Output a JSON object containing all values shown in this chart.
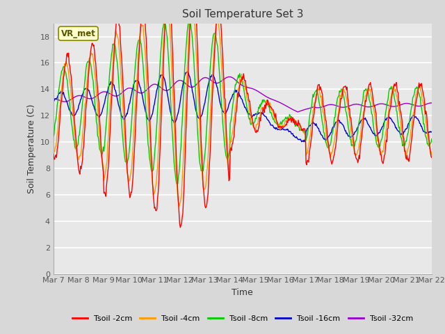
{
  "title": "Soil Temperature Set 3",
  "xlabel": "Time",
  "ylabel": "Soil Temperature (C)",
  "ylim": [
    0,
    19
  ],
  "yticks": [
    0,
    2,
    4,
    6,
    8,
    10,
    12,
    14,
    16,
    18
  ],
  "x_labels": [
    "Mar 7",
    "Mar 8",
    "Mar 9",
    "Mar 10",
    "Mar 11",
    "Mar 12",
    "Mar 13",
    "Mar 14",
    "Mar 15",
    "Mar 16",
    "Mar 17",
    "Mar 18",
    "Mar 19",
    "Mar 20",
    "Mar 21",
    "Mar 22"
  ],
  "annotation_text": "VR_met",
  "legend_labels": [
    "Tsoil -2cm",
    "Tsoil -4cm",
    "Tsoil -8cm",
    "Tsoil -16cm",
    "Tsoil -32cm"
  ],
  "line_colors": [
    "#ff0000",
    "#ff9900",
    "#00cc00",
    "#0000cc",
    "#9900cc"
  ],
  "background_color": "#d8d8d8",
  "plot_bg_color": "#e8e8e8",
  "title_fontsize": 11,
  "axis_fontsize": 9,
  "tick_fontsize": 8,
  "figwidth": 6.4,
  "figheight": 4.8,
  "dpi": 100
}
